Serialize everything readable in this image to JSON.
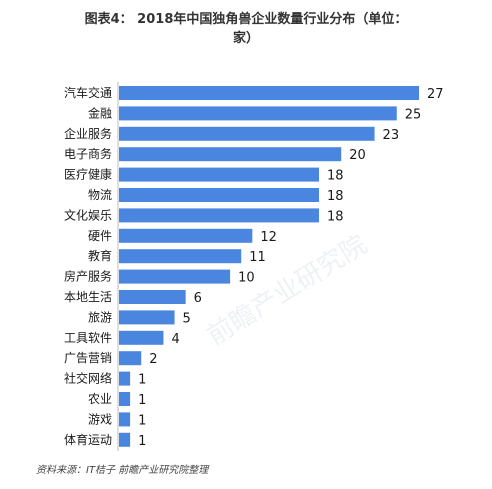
{
  "title": {
    "line1": "图表4： 2018年中国独角兽企业数量行业分布（单位：",
    "line2": "家）"
  },
  "source": "资料来源：IT桔子 前瞻产业研究院整理",
  "watermark": "前瞻产业研究院",
  "colors": {
    "bar": "#4a86e0",
    "axis": "#bdbdbd"
  },
  "chart_data": {
    "type": "bar",
    "orientation": "horizontal",
    "title": "2018年中国独角兽企业数量行业分布（单位：家）",
    "categories": [
      "汽车交通",
      "金融",
      "企业服务",
      "电子商务",
      "医疗健康",
      "物流",
      "文化娱乐",
      "硬件",
      "教育",
      "房产服务",
      "本地生活",
      "旅游",
      "工具软件",
      "广告营销",
      "社交网络",
      "农业",
      "游戏",
      "体育运动"
    ],
    "values": [
      27,
      25,
      23,
      20,
      18,
      18,
      18,
      12,
      11,
      10,
      6,
      5,
      4,
      2,
      1,
      1,
      1,
      1
    ],
    "xlim": [
      0,
      27
    ],
    "grid": false,
    "legend": "none"
  }
}
